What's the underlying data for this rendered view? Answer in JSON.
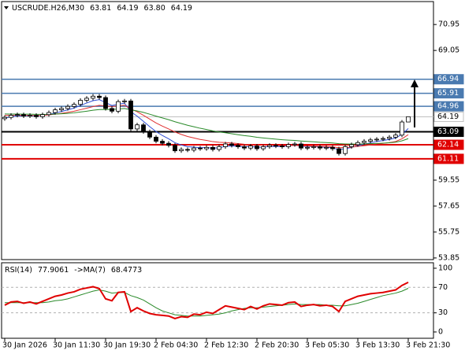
{
  "chart_data": [
    {
      "type": "candlestick",
      "title": "USCRUDE.H26,M30",
      "title_values": [
        "63.81",
        "64.19",
        "63.80",
        "64.19"
      ],
      "categories": [
        "30 Jan 2026",
        null,
        null,
        null,
        null,
        null,
        null,
        null,
        "30 Jan 11:30",
        null,
        null,
        null,
        null,
        null,
        null,
        null,
        "30 Jan 19:30",
        null,
        null,
        null,
        null,
        null,
        null,
        null,
        "2 Feb 04:30",
        null,
        null,
        null,
        null,
        null,
        null,
        null,
        "2 Feb 12:30",
        null,
        null,
        null,
        null,
        null,
        null,
        null,
        "2 Feb 20:30",
        null,
        null,
        null,
        null,
        null,
        null,
        null,
        "3 Feb 05:30",
        null,
        null,
        null,
        null,
        null,
        null,
        null,
        "3 Feb 13:30",
        null,
        null,
        null,
        null,
        null,
        null,
        null,
        "3 Feb 21:30"
      ],
      "open": [
        64.05,
        64.15,
        64.3,
        64.35,
        64.25,
        64.3,
        64.2,
        64.35,
        64.5,
        64.7,
        64.8,
        64.95,
        65.1,
        65.4,
        65.55,
        65.7,
        65.6,
        64.8,
        64.6,
        65.3,
        65.35,
        63.3,
        63.6,
        63.1,
        62.7,
        62.4,
        62.25,
        62.1,
        61.7,
        61.8,
        61.75,
        61.9,
        61.85,
        61.95,
        61.8,
        62.0,
        62.2,
        62.1,
        62.0,
        61.9,
        62.05,
        61.85,
        62.0,
        62.1,
        62.05,
        62.0,
        62.15,
        62.2,
        61.9,
        61.95,
        62.0,
        61.9,
        61.95,
        61.85,
        61.5,
        62.0,
        62.15,
        62.3,
        62.4,
        62.5,
        62.55,
        62.6,
        62.7,
        62.85,
        63.81
      ],
      "high": [
        64.3,
        64.45,
        64.5,
        64.5,
        64.45,
        64.45,
        64.5,
        64.65,
        64.85,
        64.95,
        65.1,
        65.25,
        65.55,
        65.7,
        65.85,
        65.85,
        65.75,
        64.95,
        65.45,
        65.5,
        65.5,
        63.75,
        63.75,
        63.25,
        62.85,
        62.55,
        62.4,
        62.25,
        61.95,
        61.95,
        62.05,
        62.05,
        62.1,
        62.1,
        62.15,
        62.35,
        62.35,
        62.25,
        62.15,
        62.2,
        62.2,
        62.15,
        62.25,
        62.25,
        62.2,
        62.3,
        62.35,
        62.35,
        62.1,
        62.15,
        62.15,
        62.1,
        62.1,
        62.0,
        62.15,
        62.3,
        62.45,
        62.55,
        62.65,
        62.7,
        62.75,
        62.85,
        63.0,
        63.95,
        64.19
      ],
      "low": [
        63.9,
        64.0,
        64.15,
        64.1,
        64.1,
        64.05,
        64.05,
        64.2,
        64.35,
        64.55,
        64.65,
        64.8,
        64.95,
        65.25,
        65.4,
        65.45,
        64.65,
        64.45,
        64.45,
        65.15,
        63.15,
        63.15,
        62.95,
        62.55,
        62.25,
        62.1,
        61.95,
        61.55,
        61.55,
        61.6,
        61.6,
        61.7,
        61.7,
        61.65,
        61.65,
        61.85,
        61.95,
        61.85,
        61.75,
        61.75,
        61.7,
        61.7,
        61.85,
        61.9,
        61.85,
        61.85,
        62.0,
        61.75,
        61.75,
        61.8,
        61.75,
        61.75,
        61.7,
        61.35,
        61.35,
        61.85,
        62.0,
        62.15,
        62.25,
        62.35,
        62.4,
        62.45,
        62.55,
        62.7,
        63.8
      ],
      "close": [
        64.15,
        64.3,
        64.35,
        64.25,
        64.3,
        64.2,
        64.35,
        64.5,
        64.7,
        64.8,
        64.95,
        65.1,
        65.4,
        65.55,
        65.7,
        65.6,
        64.8,
        64.6,
        65.3,
        65.35,
        63.3,
        63.6,
        63.1,
        62.7,
        62.4,
        62.25,
        62.1,
        61.7,
        61.8,
        61.75,
        61.9,
        61.85,
        61.95,
        61.8,
        62.0,
        62.2,
        62.1,
        62.0,
        61.9,
        62.05,
        61.85,
        62.0,
        62.1,
        62.05,
        62.0,
        62.15,
        62.2,
        61.9,
        61.95,
        62.0,
        61.9,
        61.95,
        61.85,
        61.5,
        62.0,
        62.15,
        62.3,
        62.4,
        62.5,
        62.55,
        62.6,
        62.7,
        62.85,
        63.81,
        64.19
      ],
      "overlays": [
        {
          "color": "#2f4fd6",
          "values": [
            64.1,
            64.18,
            64.25,
            64.25,
            64.27,
            64.25,
            64.28,
            64.35,
            64.47,
            64.58,
            64.7,
            64.83,
            65.02,
            65.2,
            65.37,
            65.45,
            65.23,
            65.02,
            65.11,
            65.19,
            64.56,
            64.24,
            63.86,
            63.47,
            63.11,
            62.82,
            62.58,
            62.29,
            62.13,
            62.0,
            61.97,
            61.93,
            61.94,
            61.89,
            61.93,
            62.02,
            62.05,
            62.03,
            61.99,
            62.01,
            61.96,
            61.97,
            62.01,
            62.02,
            62.01,
            62.06,
            62.11,
            62.04,
            62.01,
            62.01,
            61.97,
            61.96,
            61.92,
            61.78,
            61.85,
            61.95,
            62.07,
            62.18,
            62.29,
            62.38,
            62.45,
            62.53,
            62.64,
            62.9,
            63.33
          ]
        },
        {
          "color": "#e03030",
          "values": [
            64.3,
            64.3,
            64.31,
            64.3,
            64.3,
            64.29,
            64.3,
            64.33,
            64.38,
            64.44,
            64.52,
            64.6,
            64.71,
            64.82,
            64.94,
            65.03,
            64.99,
            64.94,
            64.99,
            65.04,
            64.76,
            64.56,
            64.3,
            64.02,
            63.74,
            63.51,
            63.3,
            63.08,
            62.9,
            62.75,
            62.64,
            62.53,
            62.46,
            62.37,
            62.32,
            62.3,
            62.27,
            62.23,
            62.18,
            62.16,
            62.12,
            62.1,
            62.1,
            62.09,
            62.08,
            62.09,
            62.1,
            62.07,
            62.05,
            62.04,
            62.02,
            62.01,
            61.99,
            61.93,
            61.94,
            61.97,
            62.02,
            62.07,
            62.13,
            62.19,
            62.24,
            62.3,
            62.38,
            62.58,
            62.88
          ]
        },
        {
          "color": "#2a8a2a",
          "values": [
            64.4,
            64.39,
            64.39,
            64.38,
            64.38,
            64.37,
            64.37,
            64.37,
            64.39,
            64.41,
            64.44,
            64.48,
            64.54,
            64.6,
            64.67,
            64.72,
            64.73,
            64.72,
            64.76,
            64.8,
            64.7,
            64.62,
            64.51,
            64.38,
            64.24,
            64.11,
            63.98,
            63.83,
            63.7,
            63.57,
            63.46,
            63.35,
            63.26,
            63.16,
            63.08,
            63.02,
            62.95,
            62.88,
            62.81,
            62.76,
            62.69,
            62.64,
            62.6,
            62.55,
            62.51,
            62.48,
            62.46,
            62.42,
            62.39,
            62.36,
            62.32,
            62.3,
            62.27,
            62.22,
            62.2,
            62.19,
            62.19,
            62.2,
            62.22,
            62.24,
            62.26,
            62.29,
            62.33,
            62.43,
            62.59
          ]
        }
      ],
      "levels": [
        {
          "value": 66.94,
          "color": "#4a7ab0",
          "label_bg": "#4a7ab0",
          "label_fg": "#ffffff",
          "width": 1.5
        },
        {
          "value": 65.91,
          "color": "#4a7ab0",
          "label_bg": "#4a7ab0",
          "label_fg": "#ffffff",
          "width": 1.5
        },
        {
          "value": 64.96,
          "color": "#4a7ab0",
          "label_bg": "#4a7ab0",
          "label_fg": "#ffffff",
          "width": 1.5
        },
        {
          "value": 64.19,
          "color": "#c0c0c0",
          "label_bg": "#ffffff",
          "label_fg": "#000000",
          "width": 1
        },
        {
          "value": 63.09,
          "color": "#000000",
          "label_bg": "#000000",
          "label_fg": "#ffffff",
          "width": 2
        },
        {
          "value": 62.14,
          "color": "#e00000",
          "label_bg": "#e00000",
          "label_fg": "#ffffff",
          "width": 2
        },
        {
          "value": 61.11,
          "color": "#e00000",
          "label_bg": "#e00000",
          "label_fg": "#ffffff",
          "width": 2
        }
      ],
      "up_color": "#ffffff",
      "down_color": "#000000",
      "ylim": [
        53.73,
        72.63
      ],
      "yticks": [
        70.95,
        69.05,
        59.55,
        57.65,
        55.75,
        53.85
      ]
    },
    {
      "type": "line",
      "title": "RSI(14)",
      "ma_title": "->MA(7)",
      "series": [
        {
          "color": "#e00000",
          "values": [
            42,
            47,
            48,
            45,
            47,
            44,
            48,
            52,
            56,
            58,
            61,
            63,
            67,
            69,
            71,
            68,
            52,
            49,
            62,
            63,
            32,
            38,
            33,
            29,
            27,
            26,
            25,
            21,
            24,
            23,
            28,
            27,
            31,
            29,
            35,
            41,
            39,
            37,
            35,
            40,
            36,
            41,
            44,
            43,
            42,
            46,
            47,
            40,
            42,
            43,
            41,
            42,
            40,
            32,
            48,
            52,
            56,
            58,
            60,
            61,
            62,
            64,
            66,
            73,
            77.9061
          ]
        },
        {
          "color": "#2a8a2a",
          "values": [
            46,
            46,
            46,
            46,
            46,
            46,
            46,
            47,
            49,
            50,
            52,
            55,
            58,
            61,
            64,
            66,
            64,
            61,
            62,
            62,
            57,
            54,
            50,
            44,
            38,
            33,
            30,
            27,
            26,
            25,
            25,
            25,
            26,
            27,
            28,
            30,
            33,
            35,
            37,
            38,
            38,
            39,
            40,
            41,
            42,
            43,
            44,
            43,
            43,
            43,
            43,
            42,
            42,
            41,
            41,
            43,
            45,
            48,
            51,
            54,
            57,
            59,
            61,
            64,
            68.4773
          ]
        }
      ],
      "levels": [
        70,
        30
      ],
      "ylim": [
        -9.9,
        108.6
      ],
      "yticks": [
        100,
        70,
        30,
        0
      ]
    }
  ]
}
